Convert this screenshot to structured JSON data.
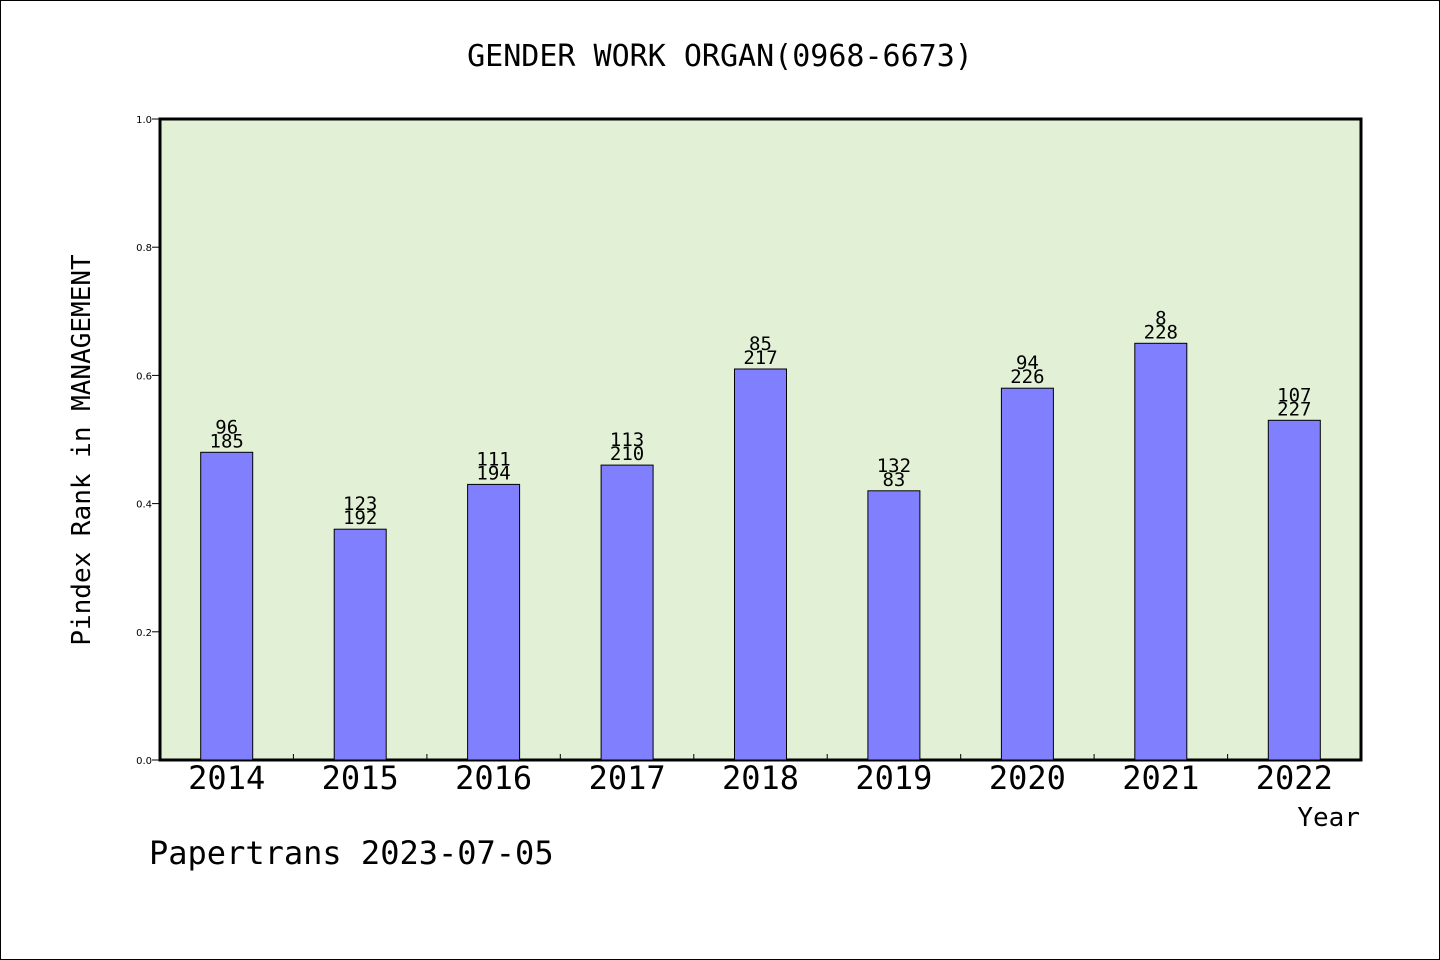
{
  "chart_data": {
    "type": "bar",
    "title": "GENDER WORK ORGAN(0968-6673)",
    "xlabel": "Year",
    "ylabel": "Pindex Rank in MANAGEMENT",
    "categories": [
      "2014",
      "2015",
      "2016",
      "2017",
      "2018",
      "2019",
      "2020",
      "2021",
      "2022"
    ],
    "values": [
      0.48,
      0.36,
      0.43,
      0.46,
      0.61,
      0.42,
      0.58,
      0.65,
      0.53
    ],
    "annotations_top": [
      "96",
      "123",
      "111",
      "113",
      "85",
      "132",
      "94",
      "8",
      "107"
    ],
    "annotations_bottom": [
      "185",
      "192",
      "194",
      "210",
      "217",
      "83",
      "226",
      "228",
      "227"
    ],
    "yticks": [
      "0.0",
      "0.2",
      "0.4",
      "0.6",
      "0.8",
      "1.0"
    ],
    "ylim": [
      0,
      1
    ],
    "grid": false,
    "plot_background": "#e2f0d6",
    "bar_color": "#8080ff"
  },
  "footer": {
    "text": "Papertrans 2023-07-05"
  }
}
